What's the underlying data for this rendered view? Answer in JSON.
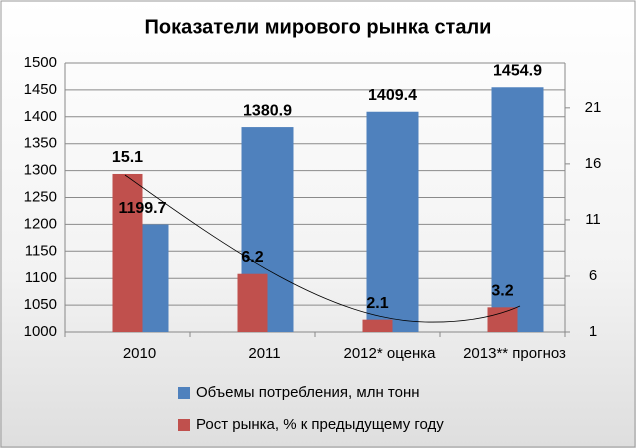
{
  "chart_data": {
    "type": "bar",
    "title": "Показатели мирового рынка стали",
    "categories": [
      "2010",
      "2011",
      "2012* оценка",
      "2013** прогноз"
    ],
    "series": [
      {
        "name": "Объемы потребления, млн тонн",
        "color": "#4f81bd",
        "values": [
          1199.7,
          1380.9,
          1409.4,
          1454.9
        ]
      },
      {
        "name": "Рост рынка, % к предыдущему году",
        "color": "#c0504d",
        "axis": "y2",
        "values": [
          15.1,
          6.2,
          2.1,
          3.2
        ]
      }
    ],
    "ylim": [
      1000,
      1500
    ],
    "yticks": [
      1000,
      1050,
      1100,
      1150,
      1200,
      1250,
      1300,
      1350,
      1400,
      1450,
      1500
    ],
    "y2lim": [
      1,
      25
    ],
    "y2ticks": [
      1,
      6,
      11,
      16,
      21
    ],
    "grid": true,
    "legend": "bottom"
  }
}
